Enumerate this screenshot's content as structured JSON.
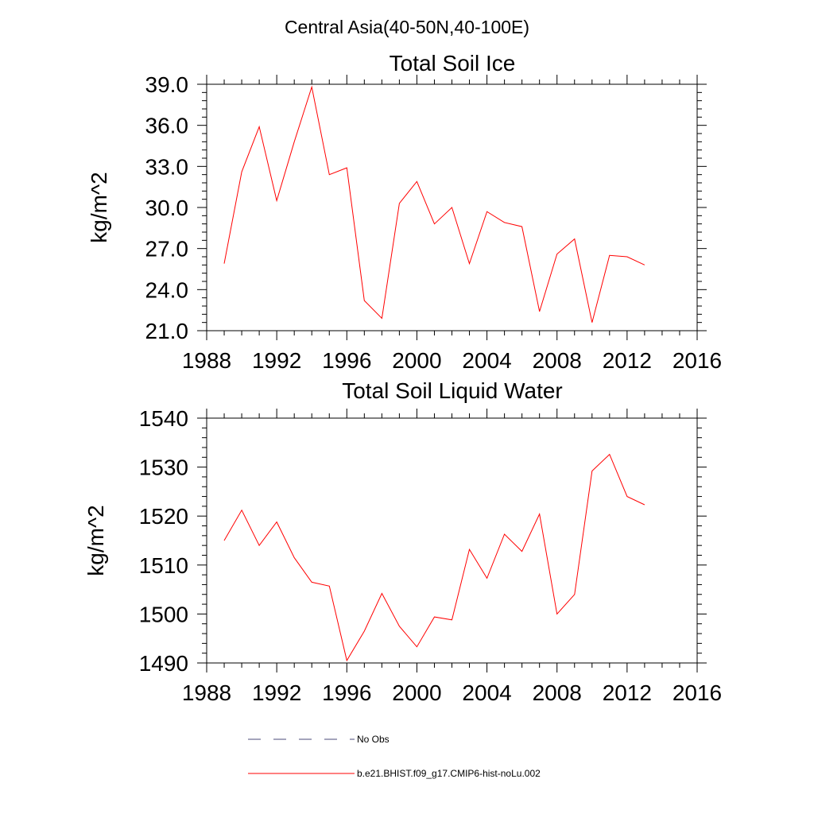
{
  "figure_title": "Central Asia(40-50N,40-100E)",
  "colors": {
    "model_line": "#ff0000",
    "obs_line": "#4a4a7a",
    "axis": "#000000",
    "background": "#ffffff"
  },
  "chart_data": [
    {
      "type": "line",
      "title": "Total Soil Ice",
      "xlabel": "",
      "ylabel": "kg/m^2",
      "xlim": [
        1988,
        2016
      ],
      "ylim": [
        21.0,
        39.0
      ],
      "xticks": [
        "1988",
        "1992",
        "1996",
        "2000",
        "2004",
        "2008",
        "2012",
        "2016"
      ],
      "yticks": [
        "21.0",
        "24.0",
        "27.0",
        "30.0",
        "33.0",
        "36.0",
        "39.0"
      ],
      "grid": false,
      "series": [
        {
          "name": "b.e21.BHIST.f09_g17.CMIP6-hist-noLu.002",
          "x": [
            1989,
            1990,
            1991,
            1992,
            1993,
            1994,
            1995,
            1996,
            1997,
            1998,
            1999,
            2000,
            2001,
            2002,
            2003,
            2004,
            2005,
            2006,
            2007,
            2008,
            2009,
            2010,
            2011,
            2012,
            2013
          ],
          "y": [
            25.9,
            32.6,
            35.9,
            30.5,
            34.8,
            38.8,
            32.4,
            32.9,
            23.2,
            21.9,
            30.3,
            31.9,
            28.8,
            30.0,
            25.9,
            29.7,
            28.9,
            28.6,
            22.4,
            26.6,
            27.7,
            21.6,
            26.5,
            26.4,
            25.8
          ]
        }
      ]
    },
    {
      "type": "line",
      "title": "Total Soil Liquid Water",
      "xlabel": "",
      "ylabel": "kg/m^2",
      "xlim": [
        1988,
        2016
      ],
      "ylim": [
        1490,
        1540
      ],
      "xticks": [
        "1988",
        "1992",
        "1996",
        "2000",
        "2004",
        "2008",
        "2012",
        "2016"
      ],
      "yticks": [
        "1490",
        "1500",
        "1510",
        "1520",
        "1530",
        "1540"
      ],
      "grid": false,
      "series": [
        {
          "name": "b.e21.BHIST.f09_g17.CMIP6-hist-noLu.002",
          "x": [
            1989,
            1990,
            1991,
            1992,
            1993,
            1994,
            1995,
            1996,
            1997,
            1998,
            1999,
            2000,
            2001,
            2002,
            2003,
            2004,
            2005,
            2006,
            2007,
            2008,
            2009,
            2010,
            2011,
            2012,
            2013
          ],
          "y": [
            1515.0,
            1521.2,
            1514.0,
            1518.8,
            1511.5,
            1506.5,
            1505.7,
            1490.5,
            1496.5,
            1504.2,
            1497.5,
            1493.3,
            1499.4,
            1498.8,
            1513.2,
            1507.3,
            1516.3,
            1512.8,
            1520.4,
            1500.0,
            1504.0,
            1529.2,
            1532.6,
            1524.0,
            1522.3
          ]
        }
      ]
    }
  ],
  "legend": {
    "placement": "bottom",
    "items": [
      {
        "label": "No Obs",
        "style": "dashed",
        "color": "#4a4a7a"
      },
      {
        "label": "b.e21.BHIST.f09_g17.CMIP6-hist-noLu.002",
        "style": "solid",
        "color": "#ff0000"
      }
    ]
  }
}
